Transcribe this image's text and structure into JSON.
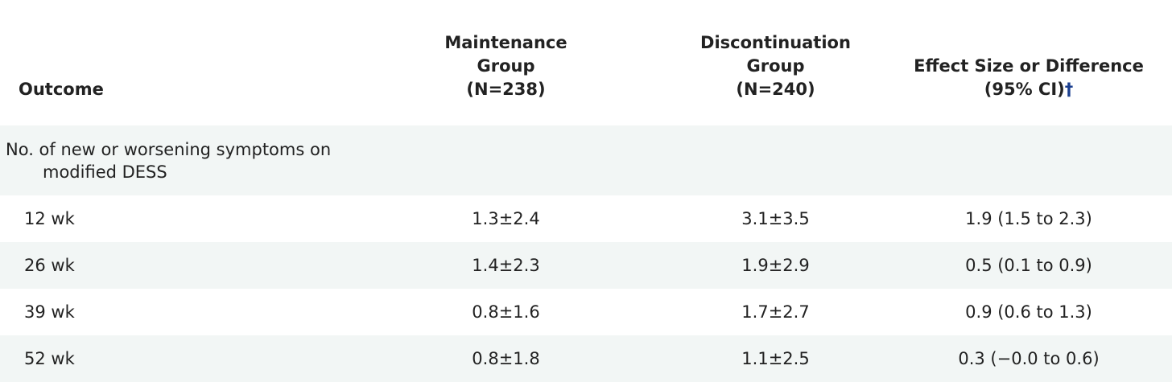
{
  "table": {
    "headers": {
      "outcome": "Outcome",
      "maintenance": {
        "line1": "Maintenance",
        "line2": "Group",
        "line3": "(N=238)"
      },
      "discontinuation": {
        "line1": "Discontinuation",
        "line2": "Group",
        "line3": "(N=240)"
      },
      "effect": {
        "line1": "Effect Size or Difference",
        "line2": "(95% CI)",
        "dagger": "†"
      }
    },
    "section": {
      "line1": "No. of new or worsening symptoms on",
      "line2": "modified DESS"
    },
    "rows": [
      {
        "label": "12 wk",
        "maintenance": "1.3±2.4",
        "discontinuation": "3.1±3.5",
        "effect": "1.9 (1.5 to 2.3)"
      },
      {
        "label": "26 wk",
        "maintenance": "1.4±2.3",
        "discontinuation": "1.9±2.9",
        "effect": "0.5 (0.1 to 0.9)"
      },
      {
        "label": "39 wk",
        "maintenance": "0.8±1.6",
        "discontinuation": "1.7±2.7",
        "effect": "0.9 (0.6 to 1.3)"
      },
      {
        "label": "52 wk",
        "maintenance": "0.8±1.8",
        "discontinuation": "1.1±2.5",
        "effect": "0.3 (−0.0 to 0.6)"
      }
    ]
  }
}
